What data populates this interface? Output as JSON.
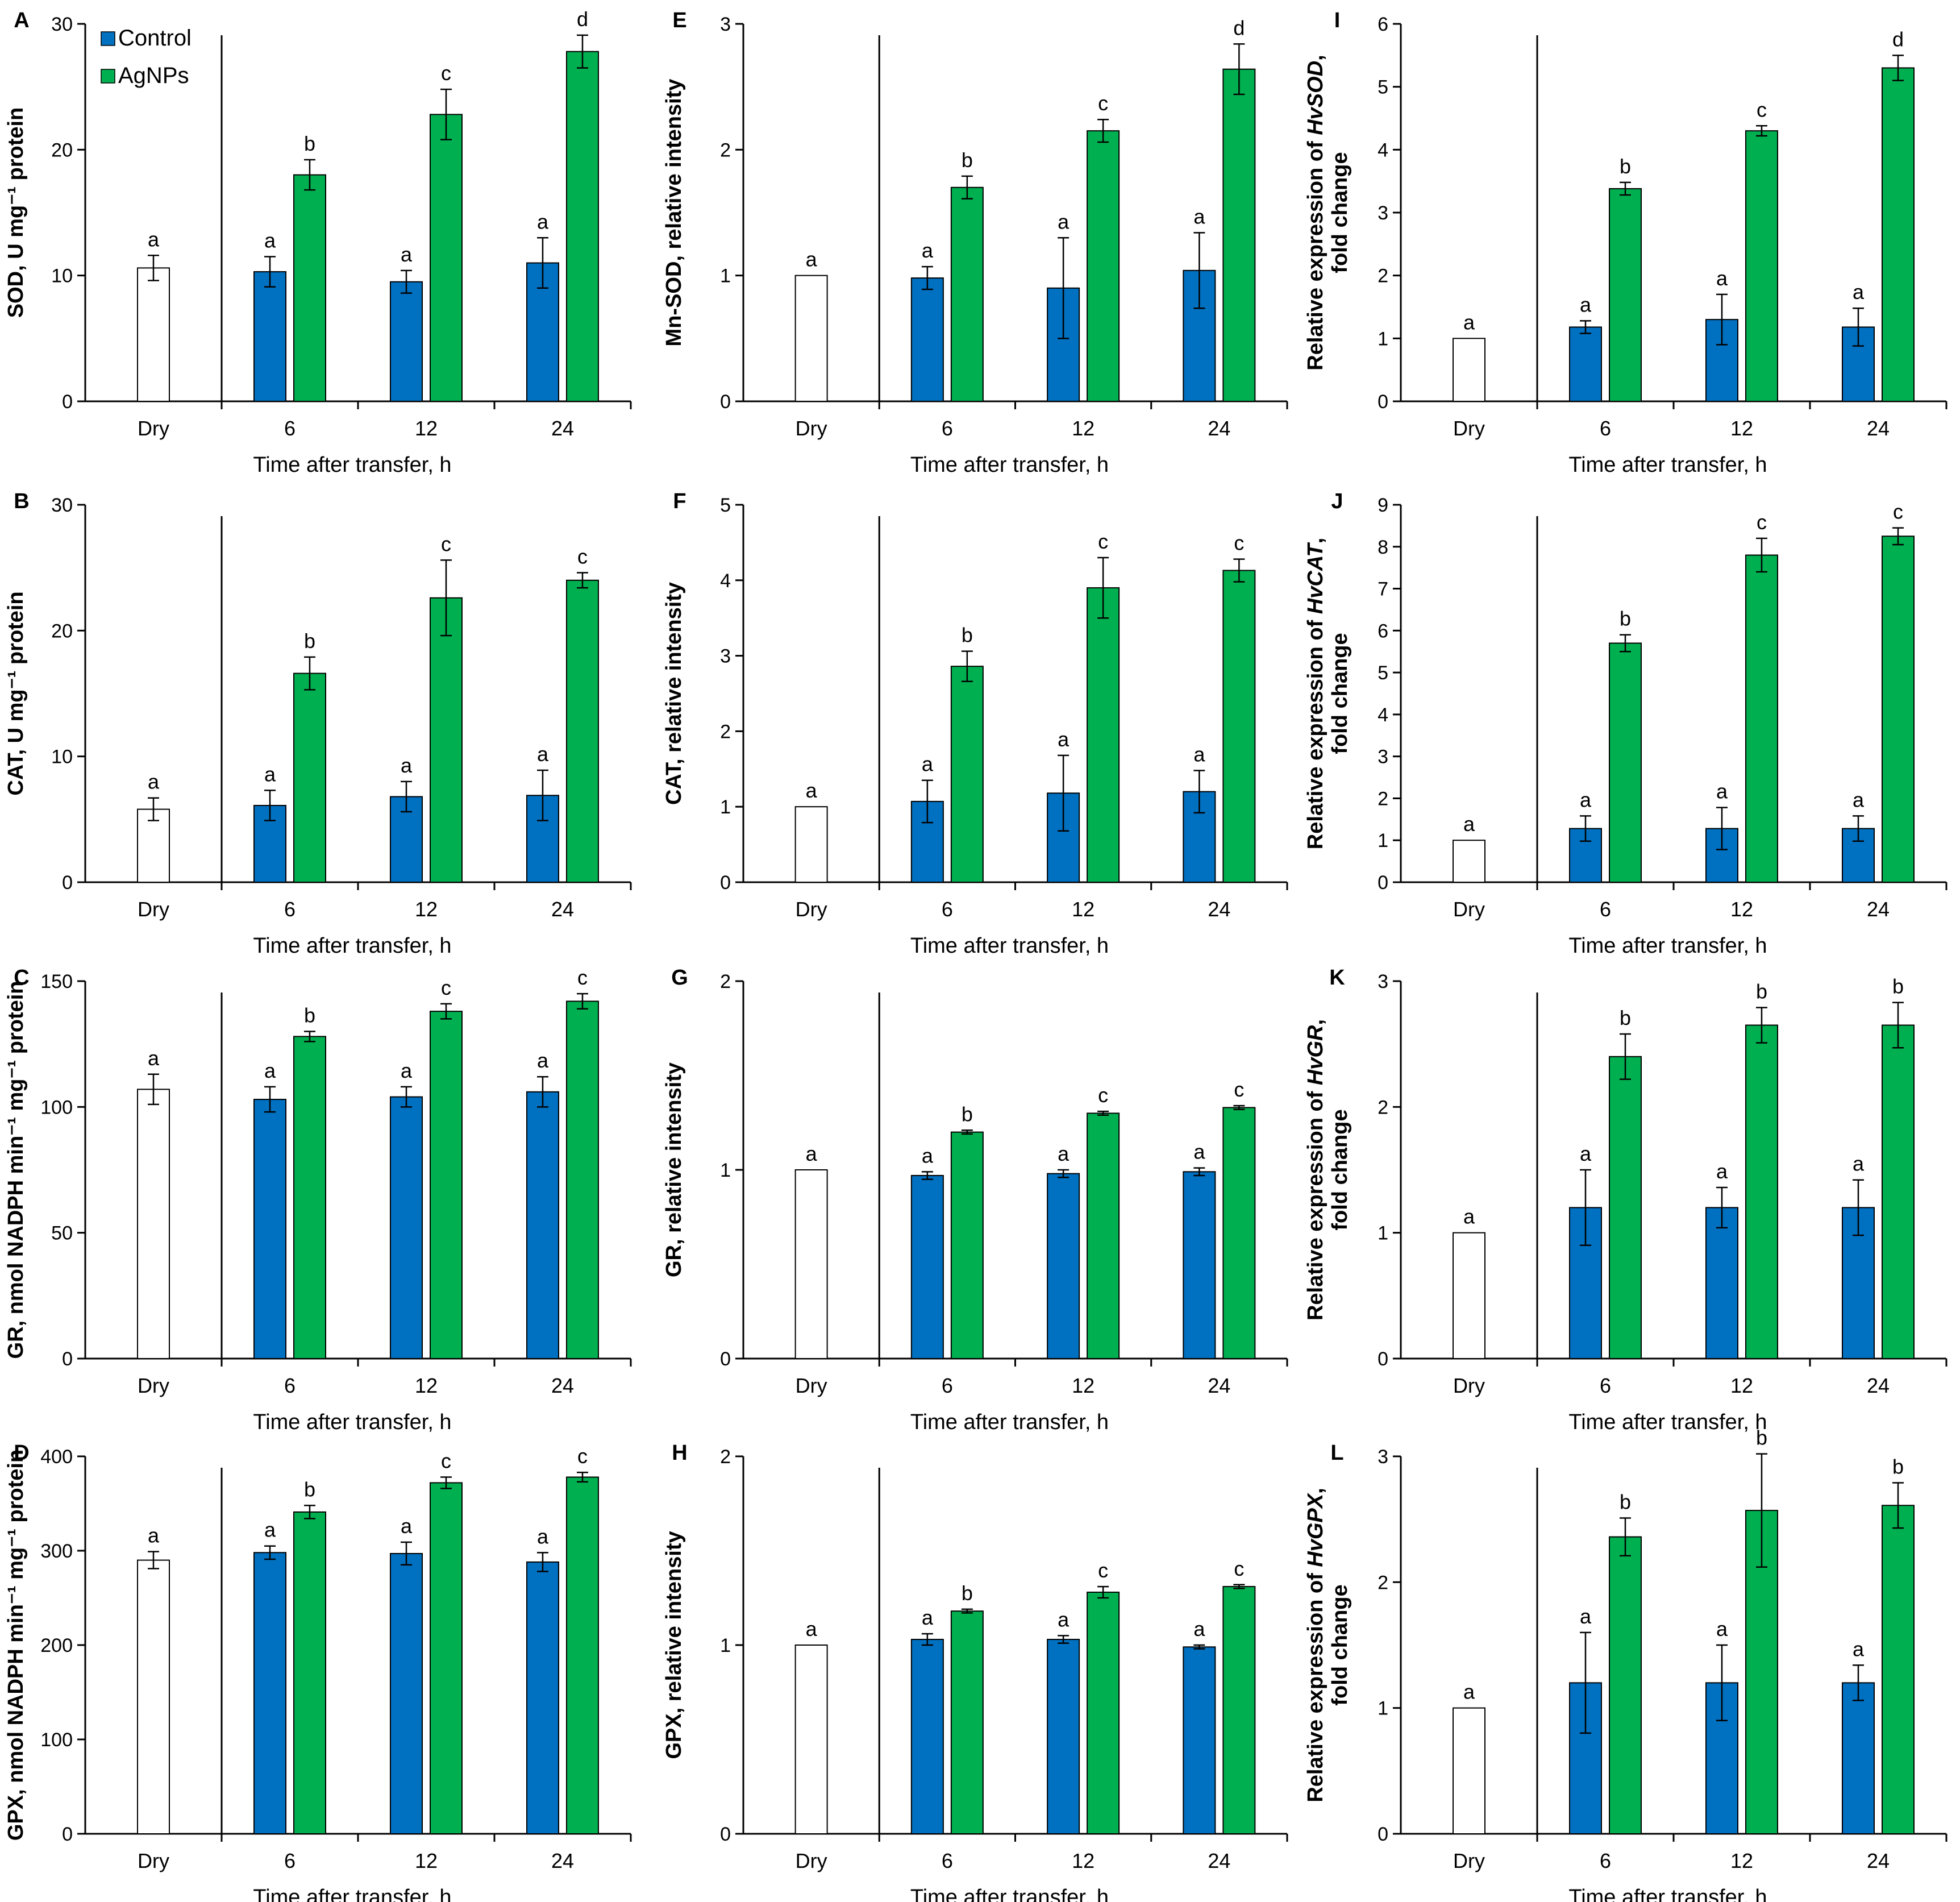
{
  "legend": {
    "items": [
      {
        "label": "Control",
        "color": "#0070c0"
      },
      {
        "label": "AgNPs",
        "color": "#00b050"
      }
    ]
  },
  "colors": {
    "dry": "#ffffff",
    "control": "#0070c0",
    "agnps": "#00b050",
    "axis": "#000000"
  },
  "chart_data": [
    {
      "panel": "A",
      "type": "bar",
      "ylabel": "SOD, U mg⁻¹ protein",
      "xlabel": "Time after transfer, h",
      "ylim": [
        0,
        30
      ],
      "yticks": [
        0,
        10,
        20,
        30
      ],
      "categories": [
        "Dry",
        "6",
        "12",
        "24"
      ],
      "series": [
        {
          "name": "Control",
          "values": [
            10.6,
            10.3,
            9.5,
            11.0
          ],
          "errors": [
            1.0,
            1.2,
            0.9,
            2.0
          ],
          "letters": [
            "a",
            "a",
            "a",
            "a"
          ]
        },
        {
          "name": "AgNPs",
          "values": [
            null,
            18.0,
            22.8,
            27.8
          ],
          "errors": [
            null,
            1.2,
            2.0,
            1.3
          ],
          "letters": [
            null,
            "b",
            "c",
            "d"
          ]
        }
      ]
    },
    {
      "panel": "B",
      "type": "bar",
      "ylabel": "CAT, U mg⁻¹ protein",
      "xlabel": "Time after transfer, h",
      "ylim": [
        0,
        30
      ],
      "yticks": [
        0,
        10,
        20,
        30
      ],
      "categories": [
        "Dry",
        "6",
        "12",
        "24"
      ],
      "series": [
        {
          "name": "Control",
          "values": [
            5.8,
            6.1,
            6.8,
            6.9
          ],
          "errors": [
            0.9,
            1.2,
            1.2,
            2.0
          ],
          "letters": [
            "a",
            "a",
            "a",
            "a"
          ]
        },
        {
          "name": "AgNPs",
          "values": [
            null,
            16.6,
            22.6,
            24.0
          ],
          "errors": [
            null,
            1.3,
            3.0,
            0.6
          ],
          "letters": [
            null,
            "b",
            "c",
            "c"
          ]
        }
      ]
    },
    {
      "panel": "C",
      "type": "bar",
      "ylabel": "GR, nmol NADPH min⁻¹ mg⁻¹ protein",
      "xlabel": "Time after transfer, h",
      "ylim": [
        0,
        150
      ],
      "yticks": [
        0,
        50,
        100,
        150
      ],
      "categories": [
        "Dry",
        "6",
        "12",
        "24"
      ],
      "series": [
        {
          "name": "Control",
          "values": [
            107,
            103,
            104,
            106
          ],
          "errors": [
            6,
            5,
            4,
            6
          ],
          "letters": [
            "a",
            "a",
            "a",
            "a"
          ]
        },
        {
          "name": "AgNPs",
          "values": [
            null,
            128,
            138,
            142
          ],
          "errors": [
            null,
            2,
            3,
            3
          ],
          "letters": [
            null,
            "b",
            "c",
            "c"
          ]
        }
      ]
    },
    {
      "panel": "D",
      "type": "bar",
      "ylabel": "GPX, nmol NADPH min⁻¹ mg⁻¹ protein",
      "xlabel": "Time after transfer, h",
      "ylim": [
        0,
        400
      ],
      "yticks": [
        0,
        100,
        200,
        300,
        400
      ],
      "categories": [
        "Dry",
        "6",
        "12",
        "24"
      ],
      "series": [
        {
          "name": "Control",
          "values": [
            290,
            298,
            297,
            288
          ],
          "errors": [
            9,
            7,
            12,
            10
          ],
          "letters": [
            "a",
            "a",
            "a",
            "a"
          ]
        },
        {
          "name": "AgNPs",
          "values": [
            null,
            341,
            372,
            378
          ],
          "errors": [
            null,
            7,
            6,
            5
          ],
          "letters": [
            null,
            "b",
            "c",
            "c"
          ]
        }
      ]
    },
    {
      "panel": "E",
      "type": "bar",
      "ylabel": "Mn-SOD, relative intensity",
      "xlabel": "Time after transfer, h",
      "ylim": [
        0,
        3
      ],
      "yticks": [
        0,
        1,
        2,
        3
      ],
      "categories": [
        "Dry",
        "6",
        "12",
        "24"
      ],
      "series": [
        {
          "name": "Control",
          "values": [
            1.0,
            0.98,
            0.9,
            1.04
          ],
          "errors": [
            0,
            0.09,
            0.4,
            0.3
          ],
          "letters": [
            "a",
            "a",
            "a",
            "a"
          ]
        },
        {
          "name": "AgNPs",
          "values": [
            null,
            1.7,
            2.15,
            2.64
          ],
          "errors": [
            null,
            0.09,
            0.09,
            0.2
          ],
          "letters": [
            null,
            "b",
            "c",
            "d"
          ]
        }
      ]
    },
    {
      "panel": "F",
      "type": "bar",
      "ylabel": "CAT, relative intensity",
      "xlabel": "Time after transfer, h",
      "ylim": [
        0,
        5
      ],
      "yticks": [
        0,
        1,
        2,
        3,
        4,
        5
      ],
      "categories": [
        "Dry",
        "6",
        "12",
        "24"
      ],
      "series": [
        {
          "name": "Control",
          "values": [
            1.0,
            1.07,
            1.18,
            1.2
          ],
          "errors": [
            0,
            0.28,
            0.5,
            0.28
          ],
          "letters": [
            "a",
            "a",
            "a",
            "a"
          ]
        },
        {
          "name": "AgNPs",
          "values": [
            null,
            2.86,
            3.9,
            4.13
          ],
          "errors": [
            null,
            0.2,
            0.4,
            0.15
          ],
          "letters": [
            null,
            "b",
            "c",
            "c"
          ]
        }
      ]
    },
    {
      "panel": "G",
      "type": "bar",
      "ylabel": "GR, relative intensity",
      "xlabel": "Time after transfer, h",
      "ylim": [
        0,
        2
      ],
      "yticks": [
        0,
        1,
        2
      ],
      "categories": [
        "Dry",
        "6",
        "12",
        "24"
      ],
      "series": [
        {
          "name": "Control",
          "values": [
            1.0,
            0.97,
            0.98,
            0.99
          ],
          "errors": [
            0,
            0.02,
            0.02,
            0.02
          ],
          "letters": [
            "a",
            "a",
            "a",
            "a"
          ]
        },
        {
          "name": "AgNPs",
          "values": [
            null,
            1.2,
            1.3,
            1.33
          ],
          "errors": [
            null,
            0.01,
            0.01,
            0.01
          ],
          "letters": [
            null,
            "b",
            "c",
            "c"
          ]
        }
      ]
    },
    {
      "panel": "H",
      "type": "bar",
      "ylabel": "GPX, relative intensity",
      "xlabel": "Time after transfer, h",
      "ylim": [
        0,
        2
      ],
      "yticks": [
        0,
        1,
        2
      ],
      "categories": [
        "Dry",
        "6",
        "12",
        "24"
      ],
      "series": [
        {
          "name": "Control",
          "values": [
            1.0,
            1.03,
            1.03,
            0.99
          ],
          "errors": [
            0,
            0.03,
            0.02,
            0.01
          ],
          "letters": [
            "a",
            "a",
            "a",
            "a"
          ]
        },
        {
          "name": "AgNPs",
          "values": [
            null,
            1.18,
            1.28,
            1.31
          ],
          "errors": [
            null,
            0.01,
            0.03,
            0.01
          ],
          "letters": [
            null,
            "b",
            "c",
            "c"
          ]
        }
      ]
    },
    {
      "panel": "I",
      "type": "bar",
      "ylabel_prefix": "Relative expression of ",
      "gene": "HvSOD",
      "ylabel_suffix": ",",
      "ylabel2": "fold change",
      "xlabel": "Time after transfer, h",
      "ylim": [
        0,
        6
      ],
      "yticks": [
        0,
        1,
        2,
        3,
        4,
        5,
        6
      ],
      "categories": [
        "Dry",
        "6",
        "12",
        "24"
      ],
      "series": [
        {
          "name": "Control",
          "values": [
            1.0,
            1.18,
            1.3,
            1.18
          ],
          "errors": [
            0,
            0.1,
            0.4,
            0.3
          ],
          "letters": [
            "a",
            "a",
            "a",
            "a"
          ]
        },
        {
          "name": "AgNPs",
          "values": [
            null,
            3.38,
            4.3,
            5.3
          ],
          "errors": [
            null,
            0.1,
            0.08,
            0.2
          ],
          "letters": [
            null,
            "b",
            "c",
            "d"
          ]
        }
      ]
    },
    {
      "panel": "J",
      "type": "bar",
      "ylabel_prefix": "Relative expression of ",
      "gene": "HvCAT",
      "ylabel_suffix": ",",
      "ylabel2": "fold change",
      "xlabel": "Time after transfer, h",
      "ylim": [
        0,
        9
      ],
      "yticks": [
        0,
        1,
        2,
        3,
        4,
        5,
        6,
        7,
        8,
        9
      ],
      "categories": [
        "Dry",
        "6",
        "12",
        "24"
      ],
      "series": [
        {
          "name": "Control",
          "values": [
            1.0,
            1.28,
            1.28,
            1.28
          ],
          "errors": [
            0,
            0.3,
            0.5,
            0.3
          ],
          "letters": [
            "a",
            "a",
            "a",
            "a"
          ]
        },
        {
          "name": "AgNPs",
          "values": [
            null,
            5.7,
            7.8,
            8.25
          ],
          "errors": [
            null,
            0.2,
            0.4,
            0.2
          ],
          "letters": [
            null,
            "b",
            "c",
            "c"
          ]
        }
      ]
    },
    {
      "panel": "K",
      "type": "bar",
      "ylabel_prefix": "Relative expression of ",
      "gene": "HvGR",
      "ylabel_suffix": ",",
      "ylabel2": "fold change",
      "xlabel": "Time after transfer, h",
      "ylim": [
        0,
        3
      ],
      "yticks": [
        0,
        1,
        2,
        3
      ],
      "categories": [
        "Dry",
        "6",
        "12",
        "24"
      ],
      "series": [
        {
          "name": "Control",
          "values": [
            1.0,
            1.2,
            1.2,
            1.2
          ],
          "errors": [
            0,
            0.3,
            0.16,
            0.22
          ],
          "letters": [
            "a",
            "a",
            "a",
            "a"
          ]
        },
        {
          "name": "AgNPs",
          "values": [
            null,
            2.4,
            2.65,
            2.65
          ],
          "errors": [
            null,
            0.18,
            0.14,
            0.18
          ],
          "letters": [
            null,
            "b",
            "b",
            "b"
          ]
        }
      ]
    },
    {
      "panel": "L",
      "type": "bar",
      "ylabel_prefix": "Relative expression of ",
      "gene": "HvGPX",
      "ylabel_suffix": ",",
      "ylabel2": "fold change",
      "xlabel": "Time after transfer, h",
      "ylim": [
        0,
        3
      ],
      "yticks": [
        0,
        1,
        2,
        3
      ],
      "categories": [
        "Dry",
        "6",
        "12",
        "24"
      ],
      "series": [
        {
          "name": "Control",
          "values": [
            1.0,
            1.2,
            1.2,
            1.2
          ],
          "errors": [
            0,
            0.4,
            0.3,
            0.14
          ],
          "letters": [
            "a",
            "a",
            "a",
            "a"
          ]
        },
        {
          "name": "AgNPs",
          "values": [
            null,
            2.36,
            2.57,
            2.61
          ],
          "errors": [
            null,
            0.15,
            0.45,
            0.18
          ],
          "letters": [
            null,
            "b",
            "b",
            "b"
          ]
        }
      ]
    }
  ]
}
